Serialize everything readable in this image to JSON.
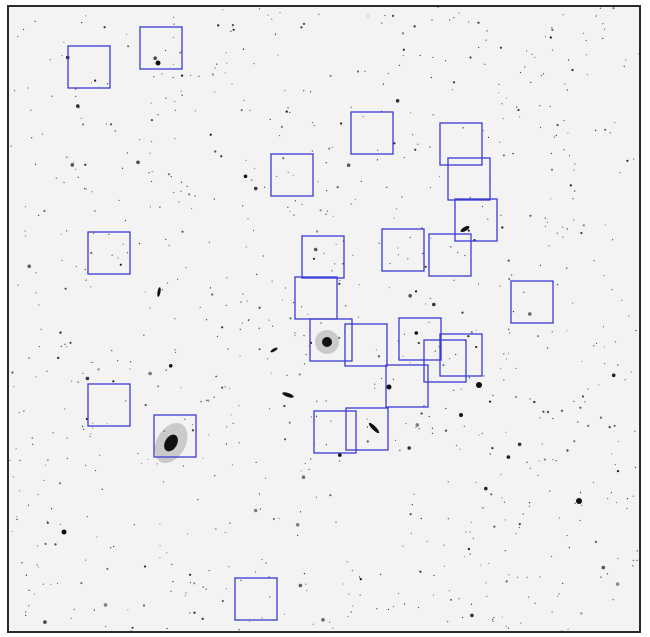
{
  "image": {
    "background_color": "#f3f3f3",
    "frame_color": "#2a2a2a",
    "star_color": "#111111",
    "field_box_color": "#3b3bd6"
  },
  "field_boxes": [
    {
      "id": "box-1"
    },
    {
      "id": "box-2"
    },
    {
      "id": "box-3"
    },
    {
      "id": "box-4"
    },
    {
      "id": "box-5"
    },
    {
      "id": "box-6"
    },
    {
      "id": "box-7"
    },
    {
      "id": "box-8"
    },
    {
      "id": "box-9"
    },
    {
      "id": "box-10"
    },
    {
      "id": "box-11"
    },
    {
      "id": "box-12"
    },
    {
      "id": "box-13"
    },
    {
      "id": "box-14"
    },
    {
      "id": "box-15"
    },
    {
      "id": "box-16"
    },
    {
      "id": "box-17"
    },
    {
      "id": "box-18"
    },
    {
      "id": "box-19"
    },
    {
      "id": "box-20"
    },
    {
      "id": "box-21"
    },
    {
      "id": "box-22"
    },
    {
      "id": "box-23"
    },
    {
      "id": "box-24"
    },
    {
      "id": "box-25"
    },
    {
      "id": "box-26"
    }
  ]
}
